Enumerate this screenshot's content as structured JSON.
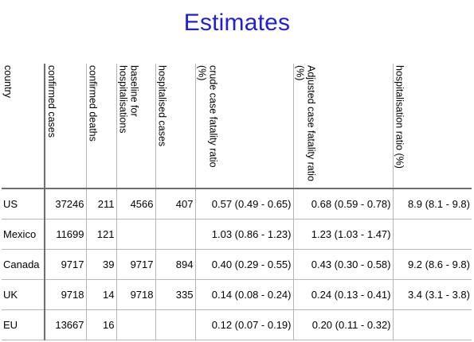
{
  "title": "Estimates",
  "columns": [
    "country",
    "confirmed cases",
    "confirmed deaths",
    "baseline for hospitalisations",
    "hospitalised cases",
    "crude case fatality ratio (%)",
    "Adjusted case fatality ratio (%)",
    "hospitalisation ratio (%)"
  ],
  "rows": [
    [
      "US",
      "37246",
      "211",
      "4566",
      "407",
      "0.57 (0.49 - 0.65)",
      "0.68 (0.59 - 0.78)",
      "8.9 (8.1 - 9.8)"
    ],
    [
      "Mexico",
      "11699",
      "121",
      "",
      "",
      "1.03 (0.86 - 1.23)",
      "1.23 (1.03 - 1.47)",
      ""
    ],
    [
      "Canada",
      "9717",
      "39",
      "9717",
      "894",
      "0.40 (0.29 - 0.55)",
      "0.43 (0.30 - 0.58)",
      "9.2 (8.6 - 9.8)"
    ],
    [
      "UK",
      "9718",
      "14",
      "9718",
      "335",
      "0.14 (0.08 - 0.24)",
      "0.24 (0.13 - 0.41)",
      "3.4 (3.1 - 3.8)"
    ],
    [
      "EU",
      "13667",
      "16",
      "",
      "",
      "0.12 (0.07 - 0.19)",
      "0.20 (0.11 - 0.32)",
      ""
    ]
  ]
}
